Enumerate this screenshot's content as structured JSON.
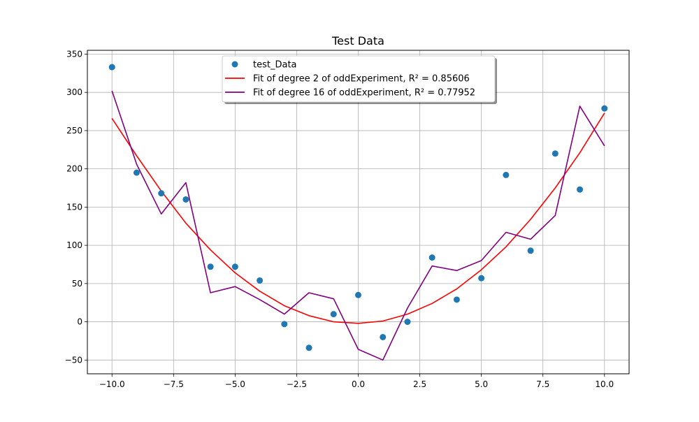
{
  "chart_data": {
    "type": "scatter",
    "title": "Test Data",
    "xlabel": "",
    "ylabel": "",
    "xlim": [
      -11.0,
      11.0
    ],
    "ylim": [
      -68,
      355
    ],
    "x_ticks": [
      -10.0,
      -7.5,
      -5.0,
      -2.5,
      0.0,
      2.5,
      5.0,
      7.5,
      10.0
    ],
    "x_tick_labels": [
      "−10.0",
      "−7.5",
      "−5.0",
      "−2.5",
      "0.0",
      "2.5",
      "5.0",
      "7.5",
      "10.0"
    ],
    "y_ticks": [
      -50,
      0,
      50,
      100,
      150,
      200,
      250,
      300,
      350
    ],
    "y_tick_labels": [
      "−50",
      "0",
      "50",
      "100",
      "150",
      "200",
      "250",
      "300",
      "350"
    ],
    "grid": true,
    "legend_position": "upper-center",
    "series": [
      {
        "name": "test_Data",
        "kind": "scatter",
        "color": "#1f77b4",
        "x": [
          -10,
          -9,
          -8,
          -7,
          -6,
          -5,
          -4,
          -3,
          -2,
          -1,
          0,
          1,
          2,
          3,
          4,
          5,
          6,
          7,
          8,
          9,
          10
        ],
        "y": [
          333,
          195,
          168,
          160,
          72,
          72,
          54,
          -3,
          -34,
          10,
          35,
          -20,
          0,
          84,
          29,
          57,
          192,
          93,
          220,
          173,
          279
        ]
      },
      {
        "name": "Fit of degree 2 of oddExperiment, R² = 0.85606",
        "kind": "line",
        "color": "#ff0000",
        "x": [
          -10,
          -9,
          -8,
          -7,
          -6,
          -5,
          -4,
          -3,
          -2,
          -1,
          0,
          1,
          2,
          3,
          4,
          5,
          6,
          7,
          8,
          9,
          10
        ],
        "y": [
          266,
          217,
          171,
          129,
          94,
          64,
          40,
          21,
          8,
          0,
          -2,
          1,
          10,
          24,
          43,
          68,
          98,
          134,
          175,
          221,
          273
        ]
      },
      {
        "name": "Fit of degree 16 of oddExperiment, R² = 0.77952",
        "kind": "line",
        "color": "#800080",
        "x": [
          -10,
          -9,
          -8,
          -7,
          -6,
          -5,
          -4,
          -3,
          -2,
          -1,
          0,
          1,
          2,
          3,
          4,
          5,
          6,
          7,
          8,
          9,
          10
        ],
        "y": [
          302,
          206,
          141,
          182,
          38,
          46,
          29,
          10,
          38,
          30,
          -36,
          -50,
          18,
          73,
          67,
          80,
          117,
          108,
          139,
          282,
          230
        ]
      }
    ]
  }
}
